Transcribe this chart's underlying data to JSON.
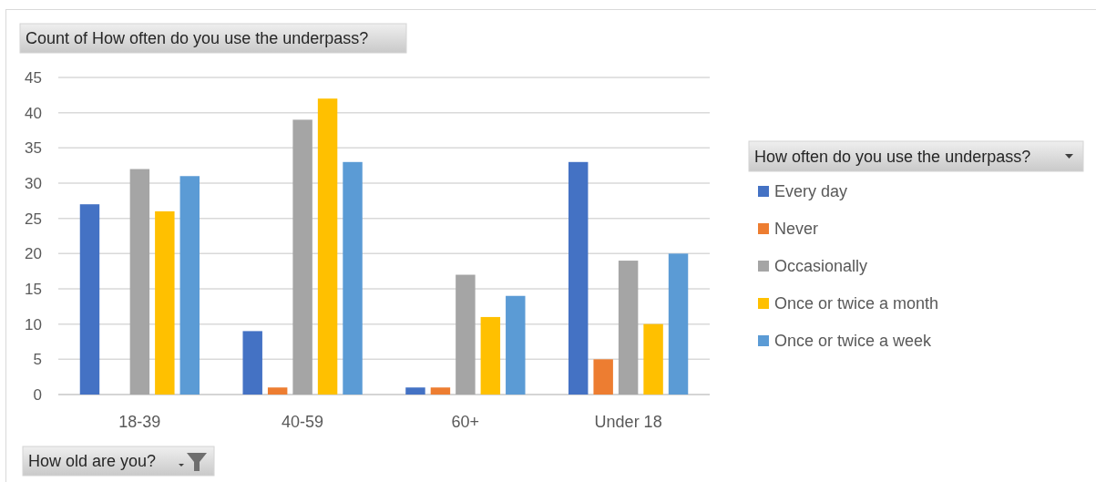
{
  "chart_data": {
    "type": "bar",
    "title": "Count of How often do you use the underpass?",
    "xlabel": "How old are you?",
    "legend_title": "How often do you use the underpass?",
    "categories": [
      "18-39",
      "40-59",
      "60+",
      "Under 18"
    ],
    "series": [
      {
        "name": "Every day",
        "color": "#4472c4",
        "values": [
          27,
          9,
          1,
          33
        ]
      },
      {
        "name": "Never",
        "color": "#ed7d31",
        "values": [
          null,
          1,
          1,
          5
        ]
      },
      {
        "name": "Occasionally",
        "color": "#a5a5a5",
        "values": [
          32,
          39,
          17,
          19
        ]
      },
      {
        "name": "Once or twice a month",
        "color": "#ffc000",
        "values": [
          26,
          42,
          11,
          10
        ]
      },
      {
        "name": "Once or twice a week",
        "color": "#5b9bd5",
        "values": [
          31,
          33,
          14,
          20
        ]
      }
    ],
    "ylim": [
      0,
      45
    ],
    "yticks": [
      0,
      5,
      10,
      15,
      20,
      25,
      30,
      35,
      40,
      45
    ],
    "grid": "y",
    "legend": "right"
  }
}
